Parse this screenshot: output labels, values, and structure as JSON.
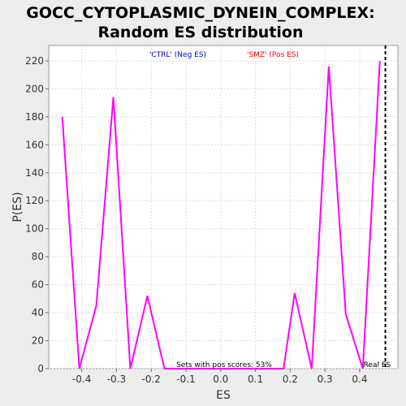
{
  "chart_data": {
    "type": "line",
    "title_line1": "GOCC_CYTOPLASMIC_DYNEIN_COMPLEX:",
    "title_line2": "Random ES distribution",
    "xlabel": "ES",
    "ylabel": "P(ES)",
    "xlim": [
      -0.495,
      0.51
    ],
    "ylim": [
      0,
      231
    ],
    "x_ticks": [
      "-0.4",
      "-0.3",
      "-0.2",
      "-0.1",
      "0.0",
      "0.1",
      "0.2",
      "0.3",
      "0.4"
    ],
    "y_ticks": [
      "0",
      "20",
      "40",
      "60",
      "80",
      "100",
      "120",
      "140",
      "160",
      "180",
      "200",
      "220"
    ],
    "grid": true,
    "series": [
      {
        "color": "#ff00ff",
        "x": [
          -0.456,
          -0.407,
          -0.358,
          -0.309,
          -0.26,
          -0.211,
          -0.162,
          -0.113,
          -0.064,
          -0.015,
          0.034,
          0.083,
          0.132,
          0.181,
          0.213,
          0.262,
          0.311,
          0.36,
          0.409,
          0.458
        ],
        "y": [
          180,
          0,
          45,
          194,
          0,
          52,
          0,
          0,
          0,
          0,
          0,
          0,
          0,
          0,
          54,
          0,
          216,
          39,
          0,
          220
        ]
      }
    ],
    "legend": [
      {
        "label": "'CTRL' (Neg ES)",
        "color": "#0000cc"
      },
      {
        "label": "'SMZ' (Pos ES)",
        "color": "#ff0000"
      }
    ],
    "note": "Sets with pos scores: 53%",
    "real_es": {
      "x": 0.474,
      "label": "Real ES",
      "color": "#000000"
    }
  }
}
